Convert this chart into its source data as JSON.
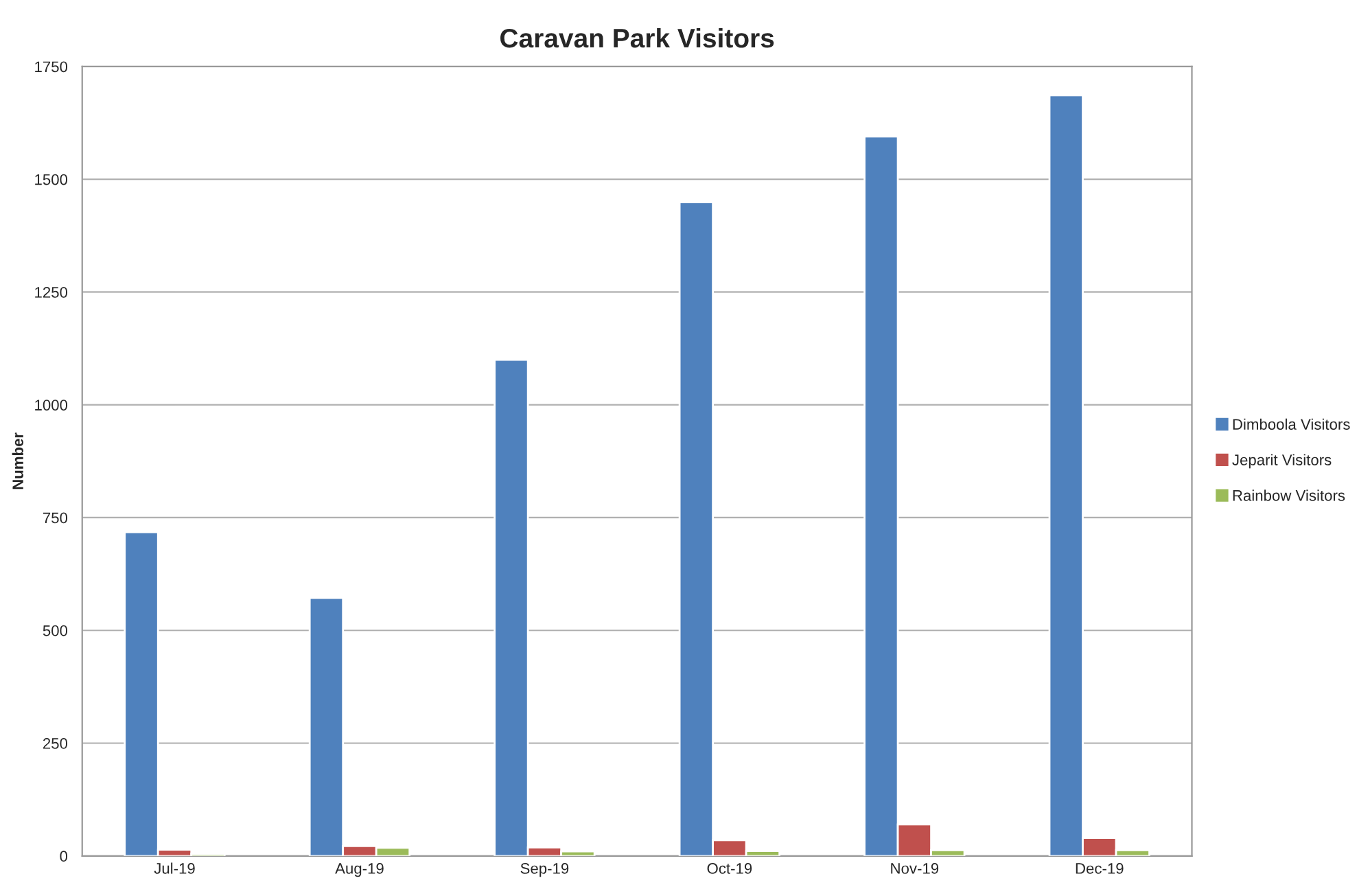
{
  "chart_data": {
    "type": "bar",
    "title": "Caravan Park Visitors",
    "ylabel": "Number",
    "categories": [
      "Jul-19",
      "Aug-19",
      "Sep-19",
      "Oct-19",
      "Nov-19",
      "Dec-19"
    ],
    "series": [
      {
        "name": "Dimboola Visitors",
        "color": "#4f81bd",
        "values": [
          718,
          572,
          1100,
          1449,
          1595,
          1686
        ]
      },
      {
        "name": "Jeparit Visitors",
        "color": "#c0504d",
        "values": [
          14,
          22,
          19,
          35,
          70,
          40
        ]
      },
      {
        "name": "Rainbow Visitors",
        "color": "#9bbb59",
        "values": [
          5,
          18,
          10,
          11,
          13,
          13
        ]
      }
    ],
    "ylim": [
      0,
      1750
    ],
    "yticks": [
      0,
      250,
      500,
      750,
      1000,
      1250,
      1500,
      1750
    ],
    "grid": "y",
    "legend": "right"
  }
}
